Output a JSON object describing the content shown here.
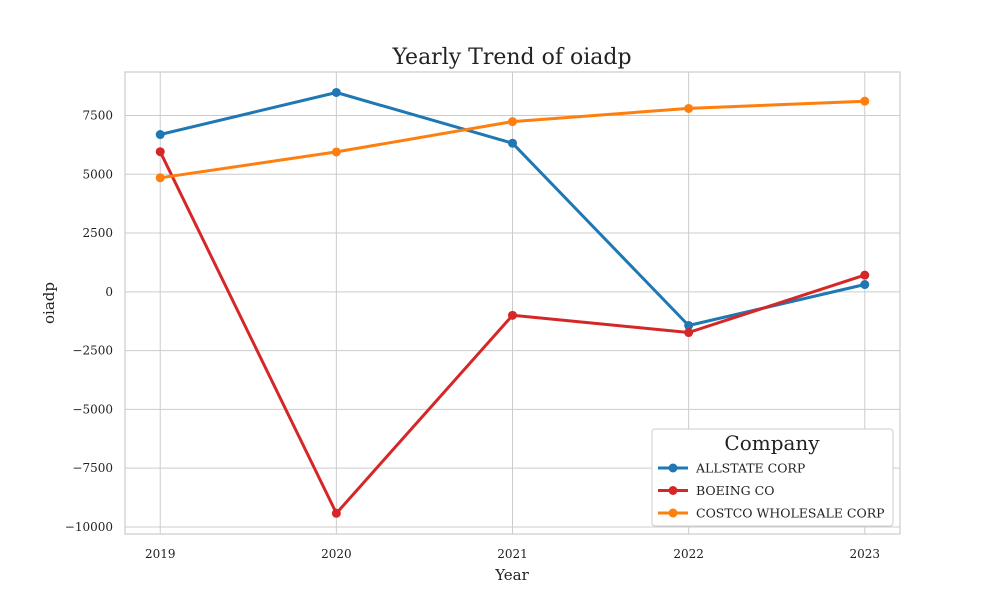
{
  "chart_data": {
    "type": "line",
    "title": "Yearly Trend of oiadp",
    "xlabel": "Year",
    "ylabel": "oiadp",
    "x": [
      2019,
      2020,
      2021,
      2022,
      2023
    ],
    "x_ticks": [
      "2019",
      "2020",
      "2021",
      "2022",
      "2023"
    ],
    "xlim": [
      2018.8,
      2023.2
    ],
    "ylim": [
      -10300,
      9350
    ],
    "y_ticks": [
      -10000,
      -7500,
      -5000,
      -2500,
      0,
      2500,
      5000,
      7500
    ],
    "y_tick_labels": [
      "−10000",
      "−7500",
      "−5000",
      "−2500",
      "0",
      "2500",
      "5000",
      "7500"
    ],
    "grid": true,
    "legend": {
      "title": "Company",
      "placement": "bottom-right"
    },
    "series": [
      {
        "name": "ALLSTATE CORP",
        "color": "#1f77b4",
        "values": [
          6690,
          8480,
          6320,
          -1430,
          310
        ]
      },
      {
        "name": "BOEING CO",
        "color": "#d62728",
        "values": [
          5960,
          -9420,
          -1000,
          -1730,
          710
        ]
      },
      {
        "name": "COSTCO WHOLESALE CORP",
        "color": "#ff7f0e",
        "values": [
          4850,
          5950,
          7240,
          7800,
          8110
        ]
      }
    ]
  }
}
